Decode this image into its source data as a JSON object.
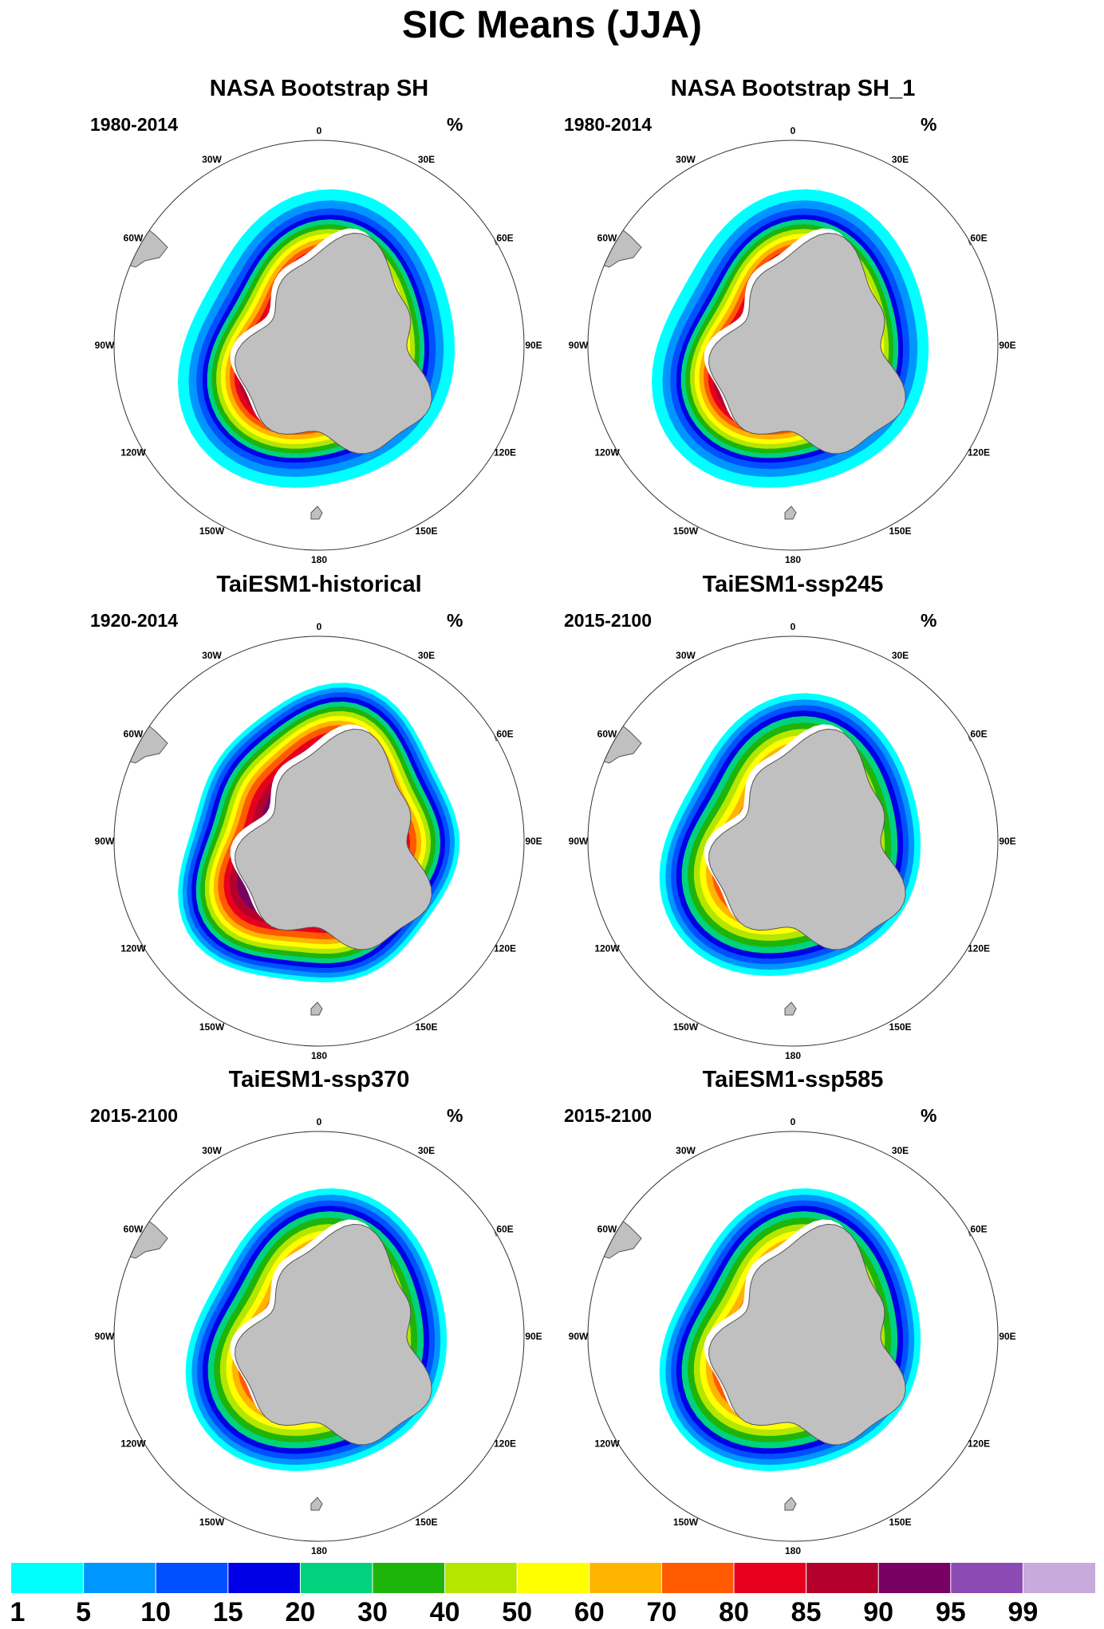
{
  "title": "SIC Means (JJA)",
  "unit": "%",
  "longitude_labels": [
    "0",
    "30E",
    "60E",
    "90E",
    "120E",
    "150E",
    "180",
    "150W",
    "120W",
    "90W",
    "60W",
    "30W"
  ],
  "panels": [
    {
      "title": "NASA Bootstrap SH",
      "period": "1980-2014",
      "style": "obs"
    },
    {
      "title": "NASA Bootstrap SH_1",
      "period": "1980-2014",
      "style": "obs"
    },
    {
      "title": "TaiESM1-historical",
      "period": "1920-2014",
      "style": "hist"
    },
    {
      "title": "TaiESM1-ssp245",
      "period": "2015-2100",
      "style": "future"
    },
    {
      "title": "TaiESM1-ssp370",
      "period": "2015-2100",
      "style": "future"
    },
    {
      "title": "TaiESM1-ssp585",
      "period": "2015-2100",
      "style": "future"
    }
  ],
  "colorbar": {
    "labels": [
      "1",
      "5",
      "10",
      "15",
      "20",
      "30",
      "40",
      "50",
      "60",
      "70",
      "80",
      "85",
      "90",
      "95",
      "99"
    ],
    "colors": [
      "#00ffff",
      "#0096ff",
      "#0050ff",
      "#0000e6",
      "#00d27d",
      "#1eb40a",
      "#b4e600",
      "#ffff00",
      "#ffb400",
      "#ff5a00",
      "#e6001e",
      "#b4002d",
      "#780064",
      "#8c4bb4",
      "#c8aadc"
    ]
  },
  "colors": {
    "land": "#c0c0c0",
    "coastline": "#555555",
    "ice_free": "#ffffff"
  }
}
